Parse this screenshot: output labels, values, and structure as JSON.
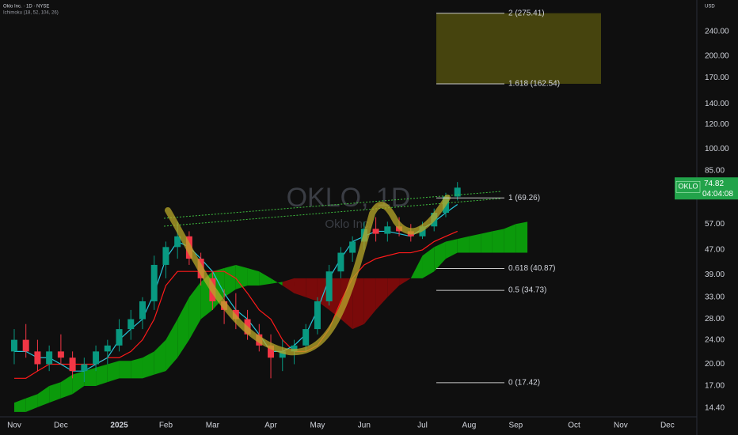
{
  "chart_data": {
    "type": "candlestick",
    "symbol_info": "Oklo Inc. · 1D · NYSE",
    "indicator": "Ichimoku (18, 52, 104, 26)",
    "watermark": "OKLO, 1D",
    "watermark_subtitle": "Oklo Inc.",
    "currency": "USD",
    "ticker": "OKLO",
    "countdown": "04:04:08",
    "log_scale": true,
    "grid": false,
    "up_color": "#089981",
    "down_color": "#f23645",
    "categories": [
      "Nov",
      null,
      null,
      null,
      "Dec",
      null,
      null,
      null,
      null,
      "2025",
      null,
      null,
      null,
      "Feb",
      null,
      null,
      null,
      "Mar",
      null,
      null,
      null,
      null,
      "Apr",
      null,
      null,
      null,
      "May",
      null,
      null,
      null,
      "Jun",
      null,
      null,
      null,
      null,
      "Jul",
      null,
      null,
      null,
      "Aug",
      null,
      null,
      null,
      "Sep",
      null,
      null,
      null,
      null,
      "Oct",
      null,
      null,
      null,
      "Nov",
      null,
      null,
      null,
      "Dec",
      null,
      null,
      null,
      null
    ],
    "candles": {
      "open": [
        22,
        24,
        22,
        20,
        22,
        21,
        19,
        20,
        22,
        23,
        26,
        28,
        32,
        42,
        48,
        52,
        44,
        38,
        32,
        30,
        28,
        25,
        23,
        21,
        22,
        23,
        26,
        32,
        40,
        46,
        50,
        55,
        53,
        56,
        54,
        52,
        56,
        62,
        70,
        null,
        null,
        null,
        null,
        null,
        null,
        null,
        null,
        null,
        null,
        null,
        null,
        null,
        null,
        null,
        null,
        null,
        null,
        null,
        null,
        null,
        null
      ],
      "high": [
        26,
        27,
        24,
        23,
        25,
        22,
        21,
        23,
        24,
        28,
        30,
        33,
        45,
        50,
        58,
        54,
        46,
        40,
        35,
        34,
        30,
        27,
        25,
        24,
        24,
        27,
        33,
        42,
        48,
        52,
        58,
        60,
        58,
        60,
        57,
        58,
        64,
        72,
        78,
        null,
        null,
        null,
        null,
        null,
        null,
        null,
        null,
        null,
        null,
        null,
        null,
        null,
        null,
        null,
        null,
        null,
        null,
        null,
        null,
        null,
        null
      ],
      "low": [
        20,
        21,
        19,
        19,
        20,
        18,
        17.5,
        19,
        20,
        22,
        24,
        26,
        30,
        38,
        44,
        42,
        36,
        30,
        27,
        26,
        24,
        22,
        18,
        19,
        20,
        22,
        25,
        31,
        38,
        43,
        47,
        50,
        50,
        52,
        50,
        51,
        54,
        60,
        68,
        null,
        null,
        null,
        null,
        null,
        null,
        null,
        null,
        null,
        null,
        null,
        null,
        null,
        null,
        null,
        null,
        null,
        null,
        null,
        null,
        null,
        null
      ],
      "close": [
        24,
        22,
        20,
        22,
        21,
        19,
        20,
        22,
        23,
        26,
        28,
        32,
        42,
        48,
        52,
        44,
        38,
        32,
        30,
        28,
        25,
        23,
        21,
        22,
        23,
        26,
        32,
        40,
        46,
        50,
        55,
        53,
        56,
        54,
        52,
        56,
        62,
        70,
        74.82,
        null,
        null,
        null,
        null,
        null,
        null,
        null,
        null,
        null,
        null,
        null,
        null,
        null,
        null,
        null,
        null,
        null,
        null,
        null,
        null,
        null,
        null
      ]
    },
    "conversion": {
      "color": "#26c6da",
      "values": [
        22,
        22,
        21,
        21,
        20,
        19,
        19,
        20,
        21,
        24,
        26,
        28,
        34,
        44,
        50,
        48,
        44,
        40,
        34,
        30,
        28,
        25,
        22,
        22,
        23,
        25,
        30,
        38,
        44,
        50,
        52,
        54,
        54,
        53,
        52,
        55,
        58,
        62,
        66,
        null,
        null,
        null,
        null,
        null,
        null,
        null,
        null,
        null,
        null,
        null,
        null,
        null,
        null,
        null,
        null,
        null,
        null,
        null,
        null,
        null,
        null
      ]
    },
    "base": {
      "color": "#ff1a1a",
      "values": [
        18,
        18,
        19,
        20,
        20,
        20,
        20,
        20,
        21,
        21,
        22,
        24,
        28,
        36,
        40,
        40,
        40,
        40,
        40,
        38,
        34,
        30,
        28,
        24,
        22,
        22,
        23,
        26,
        32,
        38,
        42,
        44,
        45,
        46,
        46,
        47,
        50,
        52,
        54,
        null,
        null,
        null,
        null,
        null,
        null,
        null,
        null,
        null,
        null,
        null,
        null,
        null,
        null,
        null,
        null,
        null,
        null,
        null,
        null,
        null,
        null
      ]
    },
    "span_a": {
      "values": [
        15,
        15.5,
        16,
        17,
        17.5,
        18.5,
        19,
        19.5,
        20,
        20.5,
        20.5,
        21,
        22,
        24,
        28,
        33,
        37,
        40,
        41,
        42,
        41,
        40,
        38,
        36,
        34,
        33,
        32,
        30,
        28,
        26,
        27,
        30,
        33,
        36,
        38,
        45,
        48,
        50,
        51,
        52,
        53,
        54,
        55,
        57,
        58,
        null,
        null,
        null,
        null,
        null,
        null,
        null,
        null,
        null,
        null,
        null,
        null,
        null,
        null,
        null,
        null
      ]
    },
    "span_b": {
      "values": [
        14,
        14,
        14.5,
        15,
        15.5,
        16,
        17,
        17,
        17.5,
        18,
        18,
        18,
        18.5,
        19,
        21,
        24,
        28,
        30,
        33,
        35,
        36,
        36,
        36.5,
        37,
        38,
        38,
        38,
        38,
        38,
        38,
        38,
        38,
        38,
        38,
        38,
        38,
        40,
        44,
        46,
        46,
        46,
        46,
        46,
        46,
        46,
        null,
        null,
        null,
        null,
        null,
        null,
        null,
        null,
        null,
        null,
        null,
        null,
        null,
        null,
        null,
        null
      ]
    },
    "cloud_up_color": "#0b9a0b",
    "cloud_down_color": "#7a0a0a",
    "fib_levels": [
      {
        "value": 275.41,
        "label": "2 (275.41)"
      },
      {
        "value": 162.54,
        "label": "1.618 (162.54)"
      },
      {
        "value": 69.26,
        "label": "1 (69.26)"
      },
      {
        "value": 40.87,
        "label": "0.618 (40.87)"
      },
      {
        "value": 34.73,
        "label": "0.5 (34.73)"
      },
      {
        "value": 17.42,
        "label": "0 (17.42)"
      }
    ],
    "target_box_color": "#4d4a0e",
    "ylim": [
      13.5,
      304
    ],
    "yticks": [
      {
        "value": 14.4,
        "label": "14.40"
      },
      {
        "value": 17,
        "label": "17.00"
      },
      {
        "value": 20,
        "label": "20.00"
      },
      {
        "value": 24,
        "label": "24.00"
      },
      {
        "value": 28,
        "label": "28.00"
      },
      {
        "value": 33,
        "label": "33.00"
      },
      {
        "value": 39,
        "label": "39.00"
      },
      {
        "value": 47,
        "label": "47.00"
      },
      {
        "value": 57,
        "label": "57.00"
      },
      {
        "value": 85,
        "label": "85.00"
      },
      {
        "value": 100,
        "label": "100.00"
      },
      {
        "value": 120,
        "label": "120.00"
      },
      {
        "value": 140,
        "label": "140.00"
      },
      {
        "value": 170,
        "label": "170.00"
      },
      {
        "value": 200,
        "label": "200.00"
      },
      {
        "value": 240,
        "label": "240.00"
      }
    ]
  }
}
